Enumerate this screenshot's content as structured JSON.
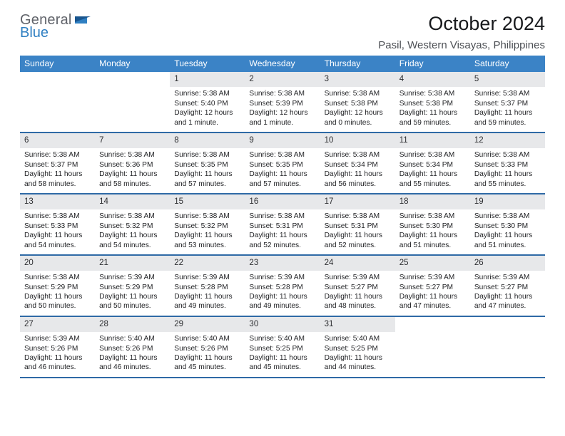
{
  "logo": {
    "word1": "General",
    "word2": "Blue"
  },
  "title": "October 2024",
  "location": "Pasil, Western Visayas, Philippines",
  "colors": {
    "header_bar": "#3b83c6",
    "week_divider": "#2f6aa6",
    "daynum_bg": "#e7e8ea",
    "logo_gray": "#60636a",
    "logo_blue": "#2f7fc2",
    "text": "#18191a",
    "location_text": "#4c4f54",
    "background": "#ffffff"
  },
  "typography": {
    "title_fontsize": 27,
    "location_fontsize": 15,
    "dow_fontsize": 12.2,
    "daynum_fontsize": 11.5,
    "detail_fontsize": 10.2,
    "font_family": "Arial"
  },
  "calendar": {
    "columns": 7,
    "dow": [
      "Sunday",
      "Monday",
      "Tuesday",
      "Wednesday",
      "Thursday",
      "Friday",
      "Saturday"
    ],
    "weeks": [
      [
        null,
        null,
        {
          "n": "1",
          "sunrise": "5:38 AM",
          "sunset": "5:40 PM",
          "daylight": "12 hours and 1 minute."
        },
        {
          "n": "2",
          "sunrise": "5:38 AM",
          "sunset": "5:39 PM",
          "daylight": "12 hours and 1 minute."
        },
        {
          "n": "3",
          "sunrise": "5:38 AM",
          "sunset": "5:38 PM",
          "daylight": "12 hours and 0 minutes."
        },
        {
          "n": "4",
          "sunrise": "5:38 AM",
          "sunset": "5:38 PM",
          "daylight": "11 hours and 59 minutes."
        },
        {
          "n": "5",
          "sunrise": "5:38 AM",
          "sunset": "5:37 PM",
          "daylight": "11 hours and 59 minutes."
        }
      ],
      [
        {
          "n": "6",
          "sunrise": "5:38 AM",
          "sunset": "5:37 PM",
          "daylight": "11 hours and 58 minutes."
        },
        {
          "n": "7",
          "sunrise": "5:38 AM",
          "sunset": "5:36 PM",
          "daylight": "11 hours and 58 minutes."
        },
        {
          "n": "8",
          "sunrise": "5:38 AM",
          "sunset": "5:35 PM",
          "daylight": "11 hours and 57 minutes."
        },
        {
          "n": "9",
          "sunrise": "5:38 AM",
          "sunset": "5:35 PM",
          "daylight": "11 hours and 57 minutes."
        },
        {
          "n": "10",
          "sunrise": "5:38 AM",
          "sunset": "5:34 PM",
          "daylight": "11 hours and 56 minutes."
        },
        {
          "n": "11",
          "sunrise": "5:38 AM",
          "sunset": "5:34 PM",
          "daylight": "11 hours and 55 minutes."
        },
        {
          "n": "12",
          "sunrise": "5:38 AM",
          "sunset": "5:33 PM",
          "daylight": "11 hours and 55 minutes."
        }
      ],
      [
        {
          "n": "13",
          "sunrise": "5:38 AM",
          "sunset": "5:33 PM",
          "daylight": "11 hours and 54 minutes."
        },
        {
          "n": "14",
          "sunrise": "5:38 AM",
          "sunset": "5:32 PM",
          "daylight": "11 hours and 54 minutes."
        },
        {
          "n": "15",
          "sunrise": "5:38 AM",
          "sunset": "5:32 PM",
          "daylight": "11 hours and 53 minutes."
        },
        {
          "n": "16",
          "sunrise": "5:38 AM",
          "sunset": "5:31 PM",
          "daylight": "11 hours and 52 minutes."
        },
        {
          "n": "17",
          "sunrise": "5:38 AM",
          "sunset": "5:31 PM",
          "daylight": "11 hours and 52 minutes."
        },
        {
          "n": "18",
          "sunrise": "5:38 AM",
          "sunset": "5:30 PM",
          "daylight": "11 hours and 51 minutes."
        },
        {
          "n": "19",
          "sunrise": "5:38 AM",
          "sunset": "5:30 PM",
          "daylight": "11 hours and 51 minutes."
        }
      ],
      [
        {
          "n": "20",
          "sunrise": "5:38 AM",
          "sunset": "5:29 PM",
          "daylight": "11 hours and 50 minutes."
        },
        {
          "n": "21",
          "sunrise": "5:39 AM",
          "sunset": "5:29 PM",
          "daylight": "11 hours and 50 minutes."
        },
        {
          "n": "22",
          "sunrise": "5:39 AM",
          "sunset": "5:28 PM",
          "daylight": "11 hours and 49 minutes."
        },
        {
          "n": "23",
          "sunrise": "5:39 AM",
          "sunset": "5:28 PM",
          "daylight": "11 hours and 49 minutes."
        },
        {
          "n": "24",
          "sunrise": "5:39 AM",
          "sunset": "5:27 PM",
          "daylight": "11 hours and 48 minutes."
        },
        {
          "n": "25",
          "sunrise": "5:39 AM",
          "sunset": "5:27 PM",
          "daylight": "11 hours and 47 minutes."
        },
        {
          "n": "26",
          "sunrise": "5:39 AM",
          "sunset": "5:27 PM",
          "daylight": "11 hours and 47 minutes."
        }
      ],
      [
        {
          "n": "27",
          "sunrise": "5:39 AM",
          "sunset": "5:26 PM",
          "daylight": "11 hours and 46 minutes."
        },
        {
          "n": "28",
          "sunrise": "5:40 AM",
          "sunset": "5:26 PM",
          "daylight": "11 hours and 46 minutes."
        },
        {
          "n": "29",
          "sunrise": "5:40 AM",
          "sunset": "5:26 PM",
          "daylight": "11 hours and 45 minutes."
        },
        {
          "n": "30",
          "sunrise": "5:40 AM",
          "sunset": "5:25 PM",
          "daylight": "11 hours and 45 minutes."
        },
        {
          "n": "31",
          "sunrise": "5:40 AM",
          "sunset": "5:25 PM",
          "daylight": "11 hours and 44 minutes."
        },
        null,
        null
      ]
    ]
  },
  "labels": {
    "sunrise_prefix": "Sunrise: ",
    "sunset_prefix": "Sunset: ",
    "daylight_prefix": "Daylight: "
  }
}
